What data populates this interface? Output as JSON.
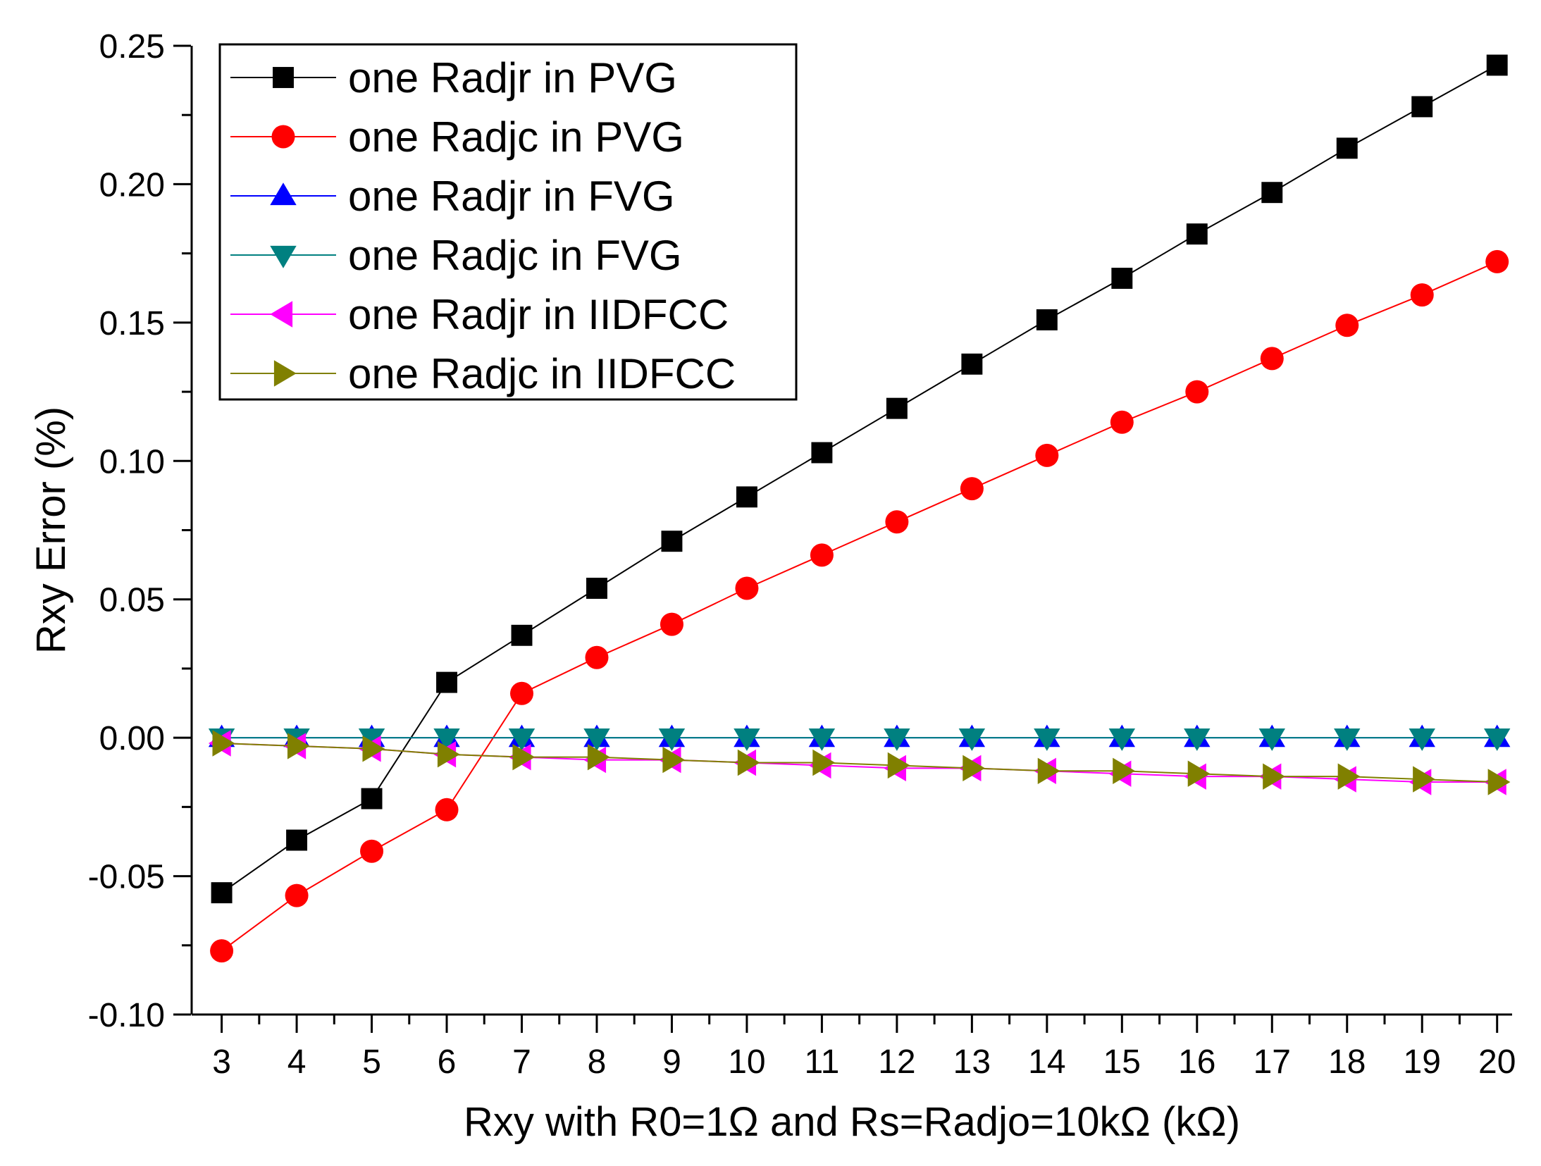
{
  "chart_data": {
    "type": "line",
    "title": "",
    "xlabel": "Rxy with R0=1Ω and Rs=Radjo=10kΩ (kΩ)",
    "ylabel": "Rxy Error (%)",
    "xlim": [
      2.6,
      20.2
    ],
    "ylim": [
      -0.1,
      0.25
    ],
    "x_ticks": [
      3,
      4,
      5,
      6,
      7,
      8,
      9,
      10,
      11,
      12,
      13,
      14,
      15,
      16,
      17,
      18,
      19,
      20
    ],
    "y_ticks": [
      -0.1,
      -0.05,
      0.0,
      0.05,
      0.1,
      0.15,
      0.2,
      0.25
    ],
    "y_tick_labels": [
      "-0.10",
      "-0.05",
      "0.00",
      "0.05",
      "0.10",
      "0.15",
      "0.20",
      "0.25"
    ],
    "grid": false,
    "legend_position": "top-left",
    "x": [
      3,
      4,
      5,
      6,
      7,
      8,
      9,
      10,
      11,
      12,
      13,
      14,
      15,
      16,
      17,
      18,
      19,
      20
    ],
    "series": [
      {
        "name": "one Radjr in PVG",
        "color": "#000000",
        "marker": "square",
        "values": [
          -0.056,
          -0.037,
          -0.022,
          0.02,
          0.037,
          0.054,
          0.071,
          0.087,
          0.103,
          0.119,
          0.135,
          0.151,
          0.166,
          0.182,
          0.197,
          0.213,
          0.228,
          0.243
        ]
      },
      {
        "name": "one Radjc in PVG",
        "color": "#ff0000",
        "marker": "circle",
        "values": [
          -0.077,
          -0.057,
          -0.041,
          -0.026,
          0.016,
          0.029,
          0.041,
          0.054,
          0.066,
          0.078,
          0.09,
          0.102,
          0.114,
          0.125,
          0.137,
          0.149,
          0.16,
          0.172
        ]
      },
      {
        "name": "one Radjr in FVG",
        "color": "#0000ff",
        "marker": "triangle-up",
        "values": [
          0.0,
          0.0,
          0.0,
          0.0,
          0.0,
          0.0,
          0.0,
          0.0,
          0.0,
          0.0,
          0.0,
          0.0,
          0.0,
          0.0,
          0.0,
          0.0,
          0.0,
          0.0
        ]
      },
      {
        "name": "one Radjc in FVG",
        "color": "#008080",
        "marker": "triangle-down",
        "values": [
          0.0,
          0.0,
          0.0,
          0.0,
          0.0,
          0.0,
          0.0,
          0.0,
          0.0,
          0.0,
          0.0,
          0.0,
          0.0,
          0.0,
          0.0,
          0.0,
          0.0,
          0.0
        ]
      },
      {
        "name": "one Radjr in IIDFCC",
        "color": "#ff00ff",
        "marker": "triangle-left",
        "values": [
          -0.002,
          -0.003,
          -0.004,
          -0.006,
          -0.007,
          -0.008,
          -0.008,
          -0.009,
          -0.01,
          -0.011,
          -0.011,
          -0.012,
          -0.013,
          -0.014,
          -0.014,
          -0.015,
          -0.016,
          -0.016
        ]
      },
      {
        "name": "one Radjc in IIDFCC",
        "color": "#808000",
        "marker": "triangle-right",
        "values": [
          -0.002,
          -0.003,
          -0.004,
          -0.006,
          -0.007,
          -0.007,
          -0.008,
          -0.009,
          -0.009,
          -0.01,
          -0.011,
          -0.012,
          -0.012,
          -0.013,
          -0.014,
          -0.014,
          -0.015,
          -0.016
        ]
      }
    ]
  }
}
